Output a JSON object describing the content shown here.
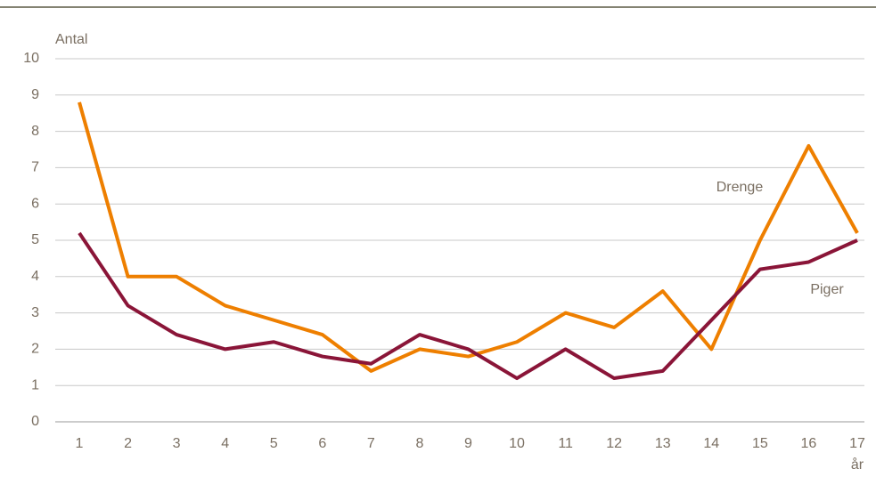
{
  "chart_data": {
    "type": "line",
    "y_label": "Antal",
    "x_label": "år",
    "categories": [
      "1",
      "2",
      "3",
      "4",
      "5",
      "6",
      "7",
      "8",
      "9",
      "10",
      "11",
      "12",
      "13",
      "14",
      "15",
      "16",
      "17"
    ],
    "series": [
      {
        "name": "Drenge",
        "color": "#ee7f00",
        "values": [
          8.8,
          4.0,
          4.0,
          3.2,
          2.8,
          2.4,
          1.4,
          2.0,
          1.8,
          2.2,
          3.0,
          2.6,
          3.6,
          2.0,
          5.0,
          7.6,
          5.2
        ]
      },
      {
        "name": "Piger",
        "color": "#8a1538",
        "values": [
          5.2,
          3.2,
          2.4,
          2.0,
          2.2,
          1.8,
          1.6,
          2.4,
          2.0,
          1.2,
          2.0,
          1.2,
          1.4,
          2.8,
          4.2,
          4.4,
          5.0
        ]
      }
    ],
    "ylim": [
      0,
      10
    ],
    "yticks": [
      0,
      1,
      2,
      3,
      4,
      5,
      6,
      7,
      8,
      9,
      10
    ],
    "grid": true
  }
}
